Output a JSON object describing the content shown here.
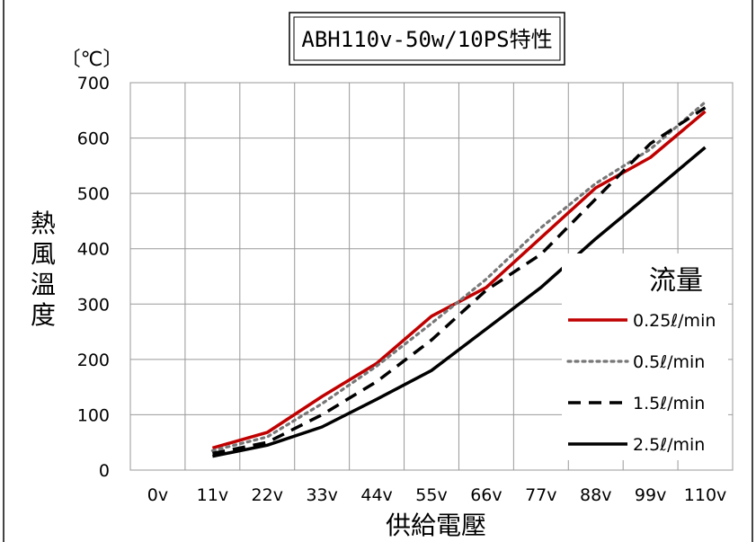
{
  "chart_data": {
    "type": "line",
    "title": "ABH110v-50w/10PS特性",
    "unit_label": "〔℃〕",
    "xlabel": "供給電壓",
    "ylabel": [
      "熱",
      "風",
      "溫",
      "度"
    ],
    "categories": [
      "0v",
      "11v",
      "22v",
      "33v",
      "44v",
      "55v",
      "66v",
      "77v",
      "88v",
      "99v",
      "110v"
    ],
    "ylim": [
      0,
      700
    ],
    "yticks": [
      0,
      100,
      200,
      300,
      400,
      500,
      600,
      700
    ],
    "grid": true,
    "legend_title": "流量",
    "legend_position": "right",
    "series": [
      {
        "name": "0.25ℓ/min",
        "color": "#c00000",
        "style": "solid",
        "values": [
          null,
          40,
          68,
          133,
          193,
          278,
          330,
          420,
          510,
          565,
          648
        ]
      },
      {
        "name": "0.5ℓ/min",
        "color": "#777777",
        "style": "dotted",
        "values": [
          null,
          35,
          60,
          120,
          188,
          265,
          345,
          438,
          518,
          580,
          665
        ]
      },
      {
        "name": "1.5ℓ/min",
        "color": "#000000",
        "style": "dashed",
        "values": [
          null,
          30,
          50,
          100,
          160,
          235,
          325,
          390,
          490,
          590,
          655
        ]
      },
      {
        "name": "2.5ℓ/min",
        "color": "#000000",
        "style": "solid",
        "values": [
          null,
          25,
          45,
          78,
          128,
          180,
          255,
          330,
          418,
          500,
          583
        ]
      }
    ]
  }
}
